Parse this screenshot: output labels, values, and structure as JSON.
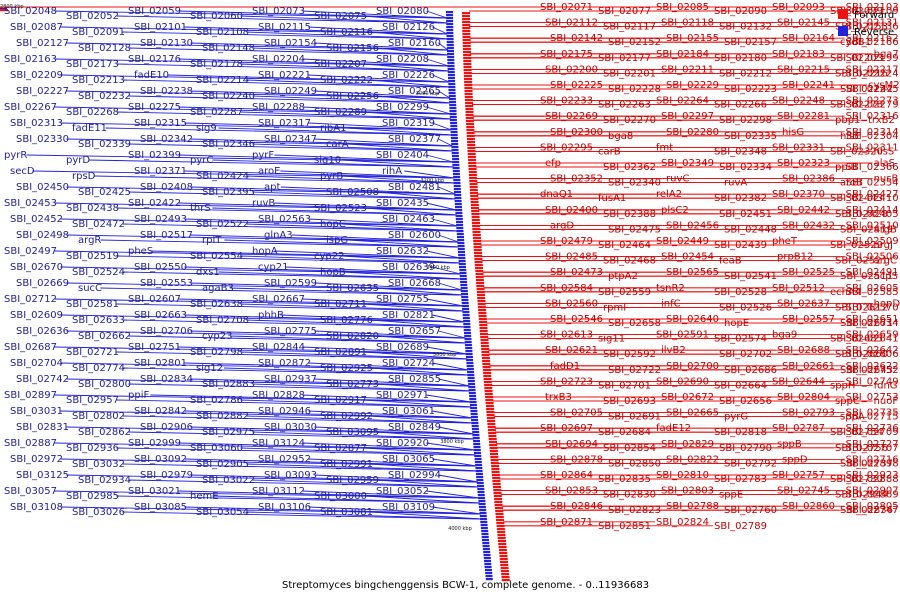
{
  "caption": "Streptomyces bingchenggensis BCW-1, complete genome. - 0..11936683",
  "colors": {
    "forward": "#ee1111",
    "reverse": "#2222dd",
    "backbone": "#000000"
  },
  "legend": [
    {
      "label": "Forward",
      "color": "#ee1111"
    },
    {
      "label": "Reverse",
      "color": "#2222dd"
    }
  ],
  "scale_ticks": [
    "2800 kbp",
    "3000 kbp",
    "3200 kbp",
    "3400 kbp",
    "3600 kbp",
    "3800 kbp",
    "4000 kbp"
  ],
  "reverse_labels": [
    "SBI_02048",
    "SBI_02052",
    "SBI_02059",
    "SBI_02060",
    "SBI_02073",
    "SBI_02075",
    "SBI_02080",
    "SBI_02087",
    "SBI_02091",
    "SBI_02101",
    "SBI_02108",
    "SBI_02115",
    "SBI_02116",
    "SBI_02126",
    "SBI_02127",
    "SBI_02128",
    "SBI_02130",
    "SBI_02148",
    "SBI_02154",
    "SBI_02156",
    "SBI_02160",
    "SBI_02163",
    "SBI_02173",
    "SBI_02176",
    "SBI_02178",
    "SBI_02204",
    "SBI_02207",
    "SBI_02208",
    "SBI_02209",
    "SBI_02213",
    "fadE10",
    "SBI_02214",
    "SBI_02221",
    "SBI_02222",
    "SBI_02226",
    "SBI_02227",
    "SBI_02232",
    "SBI_02238",
    "SBI_02240",
    "SBI_02249",
    "SBI_02256",
    "SBI_02265",
    "SBI_02267",
    "SBI_02268",
    "SBI_02275",
    "SBI_02287",
    "SBI_02288",
    "SBI_02289",
    "SBI_02299",
    "SBI_02313",
    "fadE11",
    "SBI_02315",
    "sig9",
    "SBI_02317",
    "ribA1",
    "SBI_02319",
    "SBI_02330",
    "SBI_02339",
    "SBI_02342",
    "SBI_02346",
    "SBI_02347",
    "carA",
    "SBI_02377",
    "pyrR",
    "pyrD",
    "SBI_02399",
    "pyrC",
    "pyrF",
    "sig10",
    "SBI_02404",
    "secD",
    "rpsD",
    "SBI_02371",
    "SBI_02424",
    "aroE",
    "pyrB",
    "rihA",
    "SBI_02450",
    "SBI_02425",
    "SBI_02408",
    "SBI_02395",
    "apt",
    "SBI_02508",
    "SBI_02481",
    "SBI_02453",
    "SBI_02438",
    "SBI_02422",
    "thrS",
    "ruvB",
    "SBI_02523",
    "SBI_02435",
    "SBI_02452",
    "SBI_02472",
    "SBI_02493",
    "SBI_02522",
    "SBI_02563",
    "hopC",
    "SBI_02463",
    "SBI_02498",
    "argR",
    "SBI_02517",
    "rplT",
    "glnA3",
    "ispG",
    "SBI_02600",
    "SBI_02497",
    "SBI_02519",
    "pheS",
    "SBI_02554",
    "hopA",
    "cyp22",
    "SBI_02632",
    "SBI_02670",
    "SBI_02524",
    "SBI_02550",
    "dxs1",
    "cyp21",
    "hopB",
    "SBI_02639",
    "SBI_02669",
    "sucC",
    "SBI_02553",
    "agaB3",
    "SBI_02599",
    "SBI_02635",
    "SBI_02668",
    "SBI_02712",
    "SBI_02581",
    "SBI_02607",
    "SBI_02638",
    "SBI_02667",
    "SBI_02711",
    "SBI_02755",
    "SBI_02609",
    "SBI_02633",
    "SBI_02663",
    "SBI_02708",
    "phhB",
    "SBI_02776",
    "SBI_02821",
    "SBI_02636",
    "SBI_02662",
    "SBI_02706",
    "cyp23",
    "SBI_02775",
    "SBI_02820",
    "SBI_02657",
    "SBI_02687",
    "SBI_02721",
    "SBI_02751",
    "SBI_02798",
    "SBI_02844",
    "SBI_02891",
    "SBI_02689",
    "SBI_02704",
    "SBI_02774",
    "SBI_02801",
    "sig12",
    "SBI_02872",
    "SBI_02925",
    "SBI_02724",
    "SBI_02742",
    "SBI_02800",
    "SBI_02834",
    "SBI_02883",
    "SBI_02937",
    "SBI_02773",
    "SBI_02855",
    "SBI_02897",
    "SBI_02957",
    "ppiF",
    "SBI_02786",
    "SBI_02828",
    "SBI_02917",
    "SBI_02971",
    "SBI_03031",
    "SBI_02802",
    "SBI_02842",
    "SBI_02882",
    "SBI_02946",
    "SBI_02992",
    "SBI_03061",
    "SBI_02831",
    "SBI_02862",
    "SBI_02906",
    "SBI_02975",
    "SBI_03030",
    "SBI_03095",
    "SBI_02849",
    "SBI_02887",
    "SBI_02936",
    "SBI_02999",
    "SBI_03060",
    "SBI_03124",
    "SBI_02877",
    "SBI_02920",
    "SBI_02972",
    "SBI_03032",
    "SBI_03092",
    "SBI_02905",
    "SBI_02952",
    "SBI_02991",
    "SBI_03065",
    "SBI_03125",
    "SBI_02934",
    "SBI_02979",
    "SBI_03022",
    "SBI_03093",
    "SBI_02959",
    "SBI_02994",
    "SBI_03057",
    "SBI_02985",
    "SBI_03021",
    "hemE",
    "SBI_03112",
    "SBI_03000",
    "SBI_03052",
    "SBI_03108",
    "SBI_03026",
    "SBI_03085",
    "SBI_03054",
    "SBI_03106",
    "SBI_03081",
    "SBI_03109"
  ],
  "forward_labels": [
    "SBI_02071",
    "SBI_02077",
    "SBI_02085",
    "SBI_02090",
    "SBI_02093",
    "SBI_02099",
    "SBI_02103",
    "SBI_02109",
    "SBI_02112",
    "SBI_02117",
    "SBI_02118",
    "SBI_02132",
    "SBI_02145",
    "SBI_02153",
    "SBI_02131",
    "SBI_02136",
    "SBI_02142",
    "SBI_02152",
    "SBI_02155",
    "SBI_02157",
    "SBI_02164",
    "cydB1",
    "SBI_02162",
    "SBI_02166",
    "SBI_02175",
    "SBI_02177",
    "SBI_02184",
    "SBI_02180",
    "SBI_02183",
    "SBI_02203",
    "bga7",
    "SBI_02199",
    "SBI_02200",
    "SBI_02201",
    "SBI_02211",
    "SBI_02212",
    "SBI_02215",
    "SBI_02216",
    "SBI_02217",
    "SBI_02224",
    "SBI_02225",
    "SBI_02228",
    "SBI_02229",
    "SBI_02223",
    "SBI_02241",
    "SBI_02242",
    "cysM2",
    "SBI_02245",
    "SBI_02233",
    "SBI_02263",
    "SBI_02264",
    "SBI_02266",
    "SBI_02248",
    "SBI_02278",
    "SBI_02273",
    "SBI_02279",
    "SBI_02269",
    "SBI_02270",
    "SBI_02297",
    "SBI_02298",
    "SBI_02281",
    "pbp1",
    "SBI_02316",
    "trxB2",
    "SBI_02300",
    "bga8",
    "SBI_02280",
    "SBI_02335",
    "hisG",
    "hisE",
    "SBI_02314",
    "SBI_02304",
    "SBI_02295",
    "carB",
    "fmt",
    "SBI_02348",
    "SBI_02331",
    "SBI_02320",
    "SBI_02311",
    "hisS",
    "efp",
    "SBI_02362",
    "SBI_02349",
    "SBI_02334",
    "SBI_02323",
    "ppiB",
    "alaS",
    "SBI_02366",
    "SBI_02352",
    "SBI_02340",
    "ruvC",
    "ruvA",
    "SBI_02386",
    "aroB",
    "nusB",
    "SBI_02354",
    "dnaQ1",
    "fusA1",
    "relA2",
    "SBI_02382",
    "SBI_02370",
    "SBI_02443",
    "SBI_02427",
    "SBI_02410",
    "SBI_02400",
    "SBI_02388",
    "plsC2",
    "SBI_02451",
    "SBI_02442",
    "SBI_02428",
    "SBI_02414",
    "SBI_02405",
    "argD",
    "SBI_02475",
    "SBI_02456",
    "SBI_02448",
    "SBI_02432",
    "SBI_02419",
    "SBI_02510",
    "argB",
    "SBI_02479",
    "SBI_02464",
    "SBI_02449",
    "SBI_02439",
    "pheT",
    "SBI_02529",
    "SBI_02509",
    "argJ",
    "SBI_02485",
    "SBI_02468",
    "SBI_02454",
    "feaB",
    "prpB12",
    "SBI_02521",
    "SBI_02506",
    "argC",
    "SBI_02473",
    "ptpA2",
    "SBI_02565",
    "SBI_02541",
    "SBI_02525",
    "SBI_02511",
    "SBI_02491",
    "acpS",
    "SBI_02584",
    "SBI_02559",
    "tsnR2",
    "SBI_02528",
    "SBI_02512",
    "echA4",
    "SBI_02605",
    "SBI_02585",
    "SBI_02560",
    "rpmI",
    "infC",
    "SBI_02526",
    "SBI_02637",
    "SBI_02612",
    "hopD",
    "SBI_02570",
    "SBI_02546",
    "SBI_02658",
    "SBI_02640",
    "hopE",
    "SBI_02557",
    "SBI_02671",
    "SBI_02651",
    "SBI_02634",
    "SBI_02613",
    "sig11",
    "SBI_02591",
    "SBI_02574",
    "bga9",
    "SBI_02685",
    "SBI_02659",
    "SBI_02641",
    "SBI_02621",
    "SBI_02592",
    "ilvB2",
    "SBI_02702",
    "SBI_02688",
    "SBI_02660",
    "SBI_02642",
    "SBI_02606",
    "fadD1",
    "SBI_02722",
    "SBI_02700",
    "SBI_02686",
    "SBI_02661",
    "SBI_02643",
    "SBI_02622",
    "SBI_02752",
    "SBI_02723",
    "SBI_02701",
    "SBI_02690",
    "SBI_02664",
    "SBI_02644",
    "sppH",
    "SBI_02749",
    "fdnG",
    "trxB3",
    "SBI_02693",
    "SBI_02672",
    "SBI_02656",
    "SBI_02804",
    "sppC",
    "SBI_02753",
    "nuoF",
    "SBI_02705",
    "SBI_02691",
    "SBI_02665",
    "pyrG",
    "SBI_02793",
    "sppA",
    "SBI_02735",
    "SBI_02715",
    "SBI_02697",
    "SBI_02684",
    "fadE12",
    "SBI_02818",
    "SBI_02787",
    "SBI_02754",
    "SBI_02736",
    "SBI_02709",
    "SBI_02694",
    "SBI_02854",
    "SBI_02829",
    "SBI_02790",
    "sppB",
    "SBI_02756",
    "SBI_02727",
    "SBI_02707",
    "SBI_02878",
    "SBI_02850",
    "SBI_02822",
    "SBI_02792",
    "sppD",
    "SBI_02737",
    "SBI_02716",
    "SBI_02898",
    "SBI_02864",
    "SBI_02835",
    "SBI_02810",
    "SBI_02783",
    "SBI_02757",
    "SBI_02730",
    "SBI_02923",
    "SBI_02888",
    "SBI_02853",
    "SBI_02830",
    "SBI_02803",
    "sppE",
    "SBI_02745",
    "SBI_02944",
    "SBI_02907",
    "SBI_02869",
    "SBI_02846",
    "SBI_02823",
    "SBI_02788",
    "SBI_02760",
    "SBI_02860",
    "SBI_02836",
    "SBI_02805",
    "SBI_02747",
    "SBI_02871",
    "SBI_02851",
    "SBI_02824",
    "SBI_02789"
  ]
}
